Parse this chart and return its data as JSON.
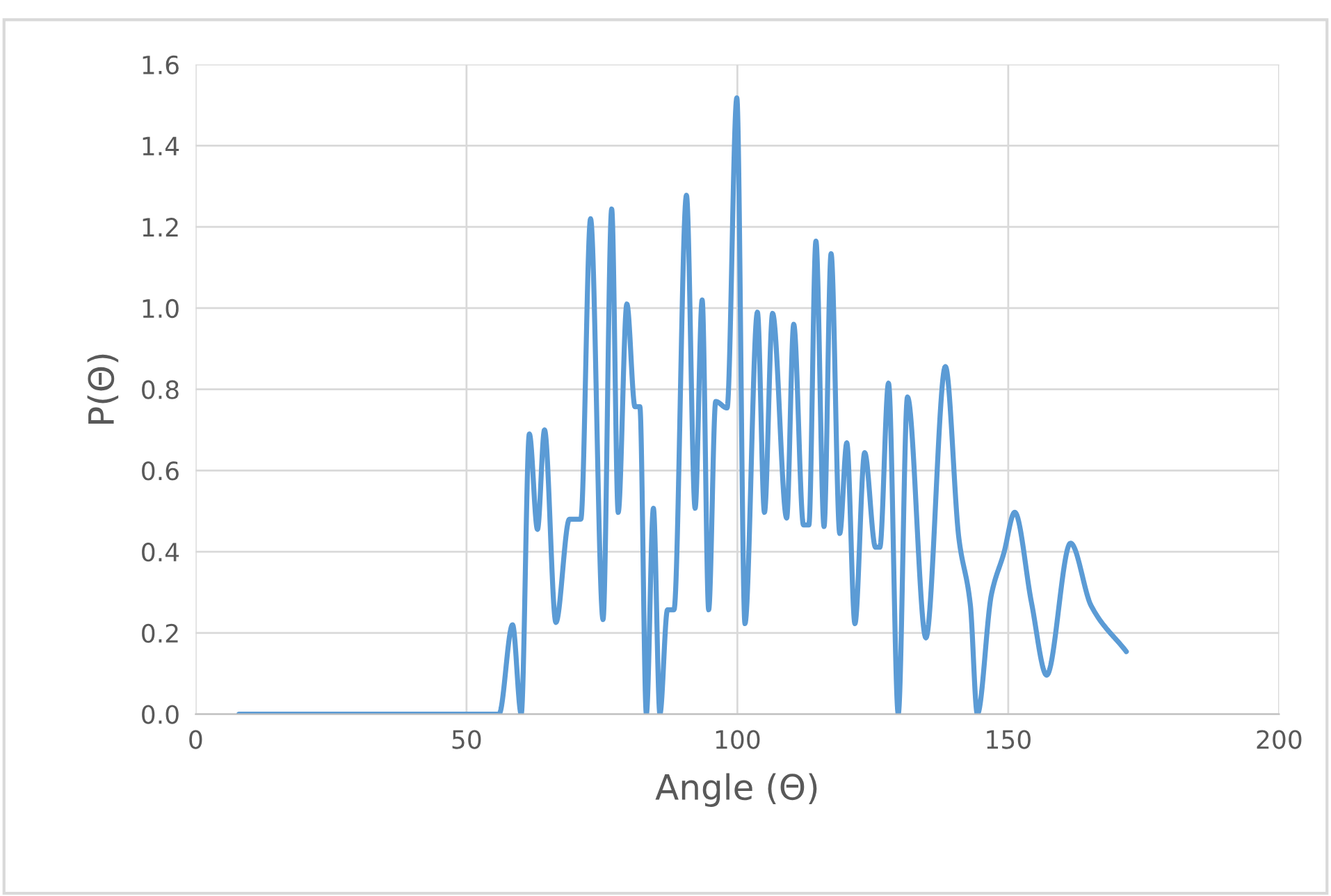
{
  "chart_data": {
    "type": "line",
    "xlabel": "Angle (Θ)",
    "ylabel": "P(Θ)",
    "xlim": [
      0,
      200
    ],
    "xticks": [
      0,
      50,
      100,
      150,
      200
    ],
    "ylim": [
      0,
      1.6
    ],
    "yticks": [
      {
        "value": 0,
        "label": "0.0"
      },
      {
        "value": 0.2,
        "label": "0.2"
      },
      {
        "value": 0.4,
        "label": "0.4"
      },
      {
        "value": 0.6,
        "label": "0.6"
      },
      {
        "value": 0.8,
        "label": "0.8"
      },
      {
        "value": 1.0,
        "label": "1.0"
      },
      {
        "value": 1.2,
        "label": "1.2"
      },
      {
        "value": 1.4,
        "label": "1.4"
      },
      {
        "value": 1.6,
        "label": "1.6"
      }
    ],
    "grid": true,
    "legend": false,
    "marker": "none",
    "line_style": "solid",
    "series": [
      {
        "color": "#5b9bd5",
        "x": [
          8,
          56,
          58.5,
          60.1,
          61.6,
          63.1,
          64.4,
          66.5,
          69,
          71.1,
          72.9,
          75.2,
          76.8,
          78.0,
          79.6,
          81.1,
          82,
          83.2,
          84.5,
          85.7,
          87.1,
          88.3,
          90.6,
          92.2,
          93.5,
          94.7,
          96,
          98.1,
          99.9,
          101.4,
          103.7,
          105,
          106.5,
          109.1,
          110.4,
          112.2,
          113.2,
          114.5,
          116,
          117.3,
          118.9,
          120.2,
          121.7,
          123.5,
          125.5,
          126.3,
          127.9,
          129.7,
          131.4,
          134.8,
          138.4,
          140.9,
          143,
          144.3,
          146.9,
          149.2,
          151.2,
          154.3,
          157.1,
          161.5,
          165.3,
          171.8
        ],
        "values": [
          0,
          0,
          0.22,
          0,
          0.69,
          0.455,
          0.7,
          0.226,
          0.48,
          0.48,
          1.22,
          0.233,
          1.244,
          0.497,
          1.01,
          0.757,
          0.757,
          0,
          0.507,
          0,
          0.257,
          0.257,
          1.278,
          0.507,
          1.02,
          0.257,
          0.77,
          0.754,
          1.518,
          0.223,
          0.99,
          0.497,
          0.987,
          0.483,
          0.96,
          0.466,
          0.466,
          1.165,
          0.462,
          1.134,
          0.445,
          0.668,
          0.223,
          0.644,
          0.411,
          0.411,
          0.815,
          0,
          0.781,
          0.188,
          0.856,
          0.432,
          0.27,
          0,
          0.295,
          0.397,
          0.497,
          0.274,
          0.096,
          0.421,
          0.267,
          0.154
        ]
      }
    ]
  }
}
